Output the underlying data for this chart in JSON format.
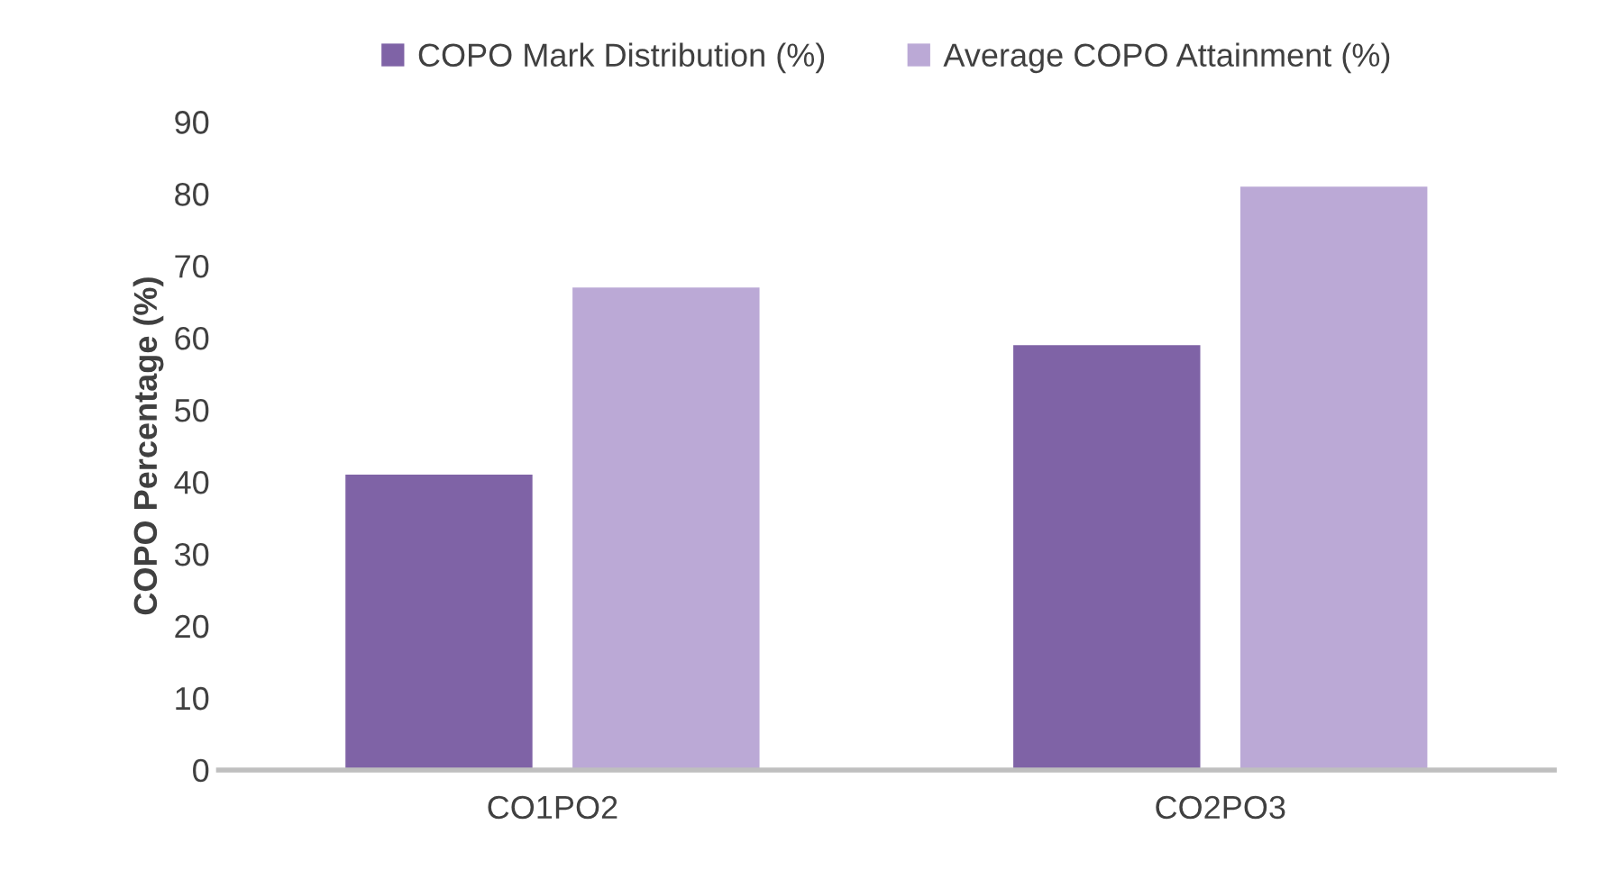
{
  "chart_data": {
    "type": "bar",
    "ylabel": "COPO Percentage (%)",
    "categories": [
      "CO1PO2",
      "CO2PO3"
    ],
    "series": [
      {
        "name": "COPO Mark Distribution (%)",
        "color": "#7f63a6",
        "values": [
          41,
          59
        ]
      },
      {
        "name": "Average COPO Attainment (%)",
        "color": "#bba9d6",
        "values": [
          67,
          81
        ]
      }
    ],
    "ylim": [
      0,
      90
    ],
    "yticks": [
      0,
      10,
      20,
      30,
      40,
      50,
      60,
      70,
      80,
      90
    ],
    "grid": false,
    "legend": "top"
  }
}
